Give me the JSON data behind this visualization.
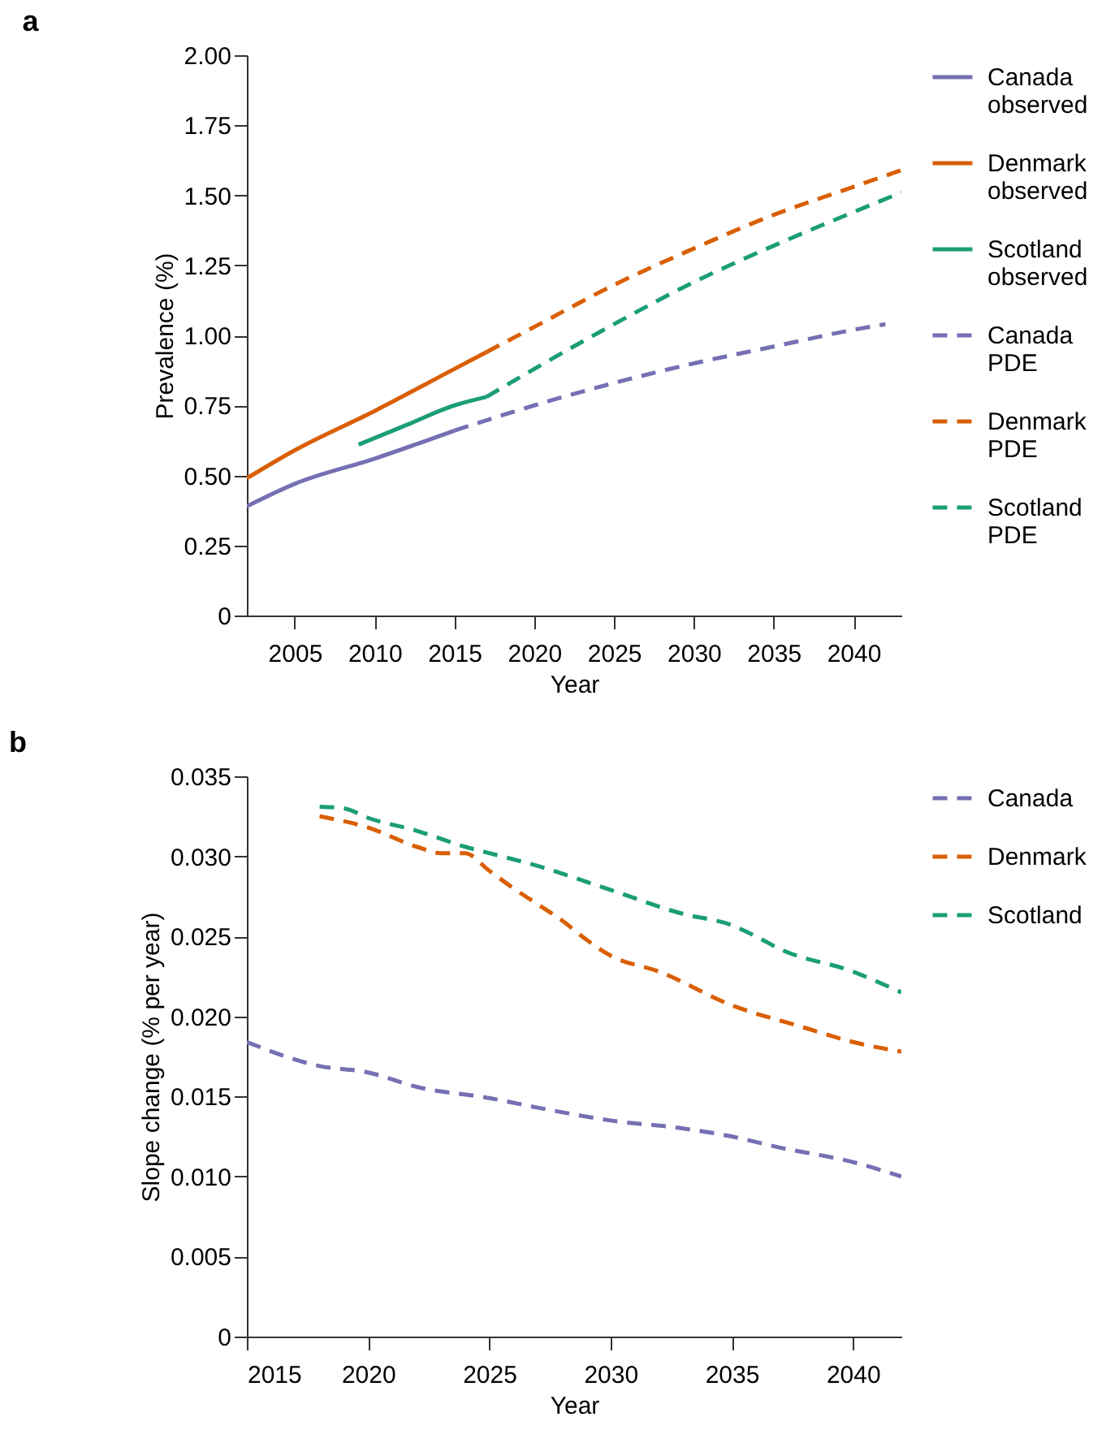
{
  "chart_data": [
    {
      "type": "line",
      "title": "a",
      "xlabel": "Year",
      "ylabel": "Prevalence (%)",
      "xlim": [
        2002,
        2043
      ],
      "xticks": [
        2005,
        2010,
        2015,
        2020,
        2025,
        2030,
        2035,
        2040
      ],
      "ylim": [
        0,
        2
      ],
      "yticks": [
        0,
        0.25,
        {
          "value": 0.5,
          "label": "0.50"
        },
        0.75,
        {
          "value": 1,
          "label": "1.00"
        },
        1.25,
        {
          "value": 1.5,
          "label": "1.50"
        },
        1.75,
        {
          "value": 2,
          "label": "2.00"
        }
      ],
      "grid": false,
      "legend": "right",
      "series": [
        {
          "name": "Canada observed",
          "color": "#7570b3",
          "line_style": "solid",
          "x": [
            2002,
            2005,
            2010,
            2015
          ],
          "values": [
            0.39,
            0.47,
            0.56,
            0.66
          ]
        },
        {
          "name": "Denmark observed",
          "color": "#d95f02",
          "line_style": "solid",
          "x": [
            2002,
            2005,
            2010,
            2015,
            2017
          ],
          "values": [
            0.49,
            0.59,
            0.73,
            0.88,
            0.94
          ]
        },
        {
          "name": "Scotland observed",
          "color": "#1b9e77",
          "line_style": "solid",
          "x": [
            2009,
            2012,
            2015,
            2017
          ],
          "values": [
            0.61,
            0.68,
            0.75,
            0.78
          ]
        },
        {
          "name": "Canada PDE",
          "color": "#7570b3",
          "line_style": "dashed",
          "x": [
            2015,
            2020,
            2025,
            2030,
            2035,
            2040,
            2042
          ],
          "values": [
            0.66,
            0.75,
            0.83,
            0.9,
            0.96,
            1.02,
            1.04
          ]
        },
        {
          "name": "Denmark PDE",
          "color": "#d95f02",
          "line_style": "dashed",
          "x": [
            2017,
            2020,
            2025,
            2030,
            2035,
            2040,
            2043
          ],
          "values": [
            0.94,
            1.03,
            1.18,
            1.31,
            1.43,
            1.53,
            1.59
          ]
        },
        {
          "name": "Scotland PDE",
          "color": "#1b9e77",
          "line_style": "dashed",
          "x": [
            2017,
            2020,
            2025,
            2030,
            2035,
            2040,
            2043
          ],
          "values": [
            0.78,
            0.88,
            1.04,
            1.19,
            1.32,
            1.44,
            1.51
          ]
        }
      ]
    },
    {
      "type": "line",
      "title": "b",
      "xlabel": "Year",
      "ylabel": "Slope change (% per year)",
      "xlim": [
        2015,
        2042
      ],
      "xticks": [
        2015,
        2020,
        2025,
        2030,
        2035,
        2040
      ],
      "ylim": [
        0,
        0.035
      ],
      "yticks": [
        0,
        0.005,
        {
          "value": 0.01,
          "label": "0.010"
        },
        0.015,
        {
          "value": 0.02,
          "label": "0.020"
        },
        0.025,
        {
          "value": 0.03,
          "label": "0.030"
        },
        0.035
      ],
      "grid": false,
      "legend": "right",
      "series": [
        {
          "name": "Canada",
          "color": "#7570b3",
          "line_style": "dashed",
          "x": [
            2015,
            2018,
            2020,
            2022,
            2025,
            2027,
            2030,
            2033,
            2035,
            2037,
            2040,
            2042
          ],
          "values": [
            0.0184,
            0.0169,
            0.0165,
            0.0156,
            0.0149,
            0.0143,
            0.0135,
            0.013,
            0.0125,
            0.0118,
            0.0109,
            0.01
          ]
        },
        {
          "name": "Denmark",
          "color": "#d95f02",
          "line_style": "dashed",
          "x": [
            2018,
            2020,
            2022,
            2023,
            2024,
            2025,
            2026,
            2027,
            2028,
            2029,
            2030,
            2032,
            2035,
            2038,
            2040,
            2042
          ],
          "values": [
            0.0325,
            0.0318,
            0.0306,
            0.0302,
            0.0302,
            0.0291,
            0.028,
            0.027,
            0.026,
            0.0248,
            0.0238,
            0.0228,
            0.0207,
            0.0193,
            0.0184,
            0.0178
          ]
        },
        {
          "name": "Scotland",
          "color": "#1b9e77",
          "line_style": "dashed",
          "x": [
            2018,
            2019,
            2020,
            2022,
            2024,
            2025,
            2027,
            2030,
            2033,
            2035,
            2036,
            2037,
            2040,
            2042
          ],
          "values": [
            0.0331,
            0.033,
            0.0324,
            0.0316,
            0.0306,
            0.0302,
            0.0294,
            0.0279,
            0.0264,
            0.0257,
            0.025,
            0.0242,
            0.0228,
            0.0215
          ]
        }
      ]
    }
  ]
}
